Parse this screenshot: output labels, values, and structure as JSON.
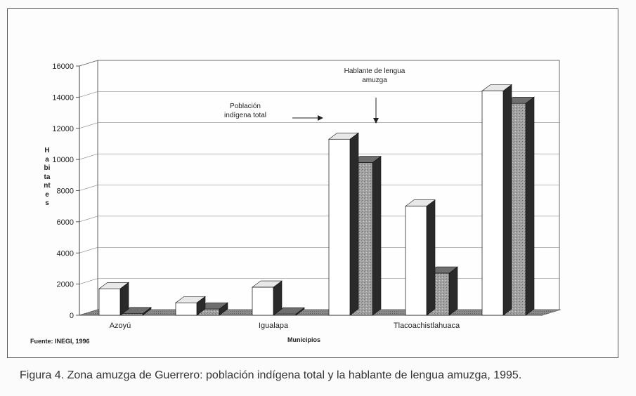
{
  "chart_data": {
    "type": "bar",
    "title": "",
    "xlabel": "Municipios",
    "ylabel": "Habitantes",
    "ylim": [
      0,
      16000
    ],
    "yticks": [
      "0",
      "2000",
      "4000",
      "6000",
      "8000",
      "10000",
      "12000",
      "14000",
      "16000"
    ],
    "categories": [
      "Azoyú",
      "",
      "Igualapa",
      "",
      "Tlacoachistlahuaca",
      ""
    ],
    "series": [
      {
        "name": "Población indígena total",
        "values": [
          1700,
          800,
          1800,
          11300,
          7000,
          14400
        ]
      },
      {
        "name": "Hablante de lengua amuzga",
        "values": [
          100,
          400,
          80,
          9800,
          2700,
          13600
        ]
      }
    ],
    "grid": true,
    "legend": "annotations with arrows, top-center"
  },
  "annotations": {
    "total_line1": "Población",
    "total_line2": "indígena total",
    "amuzga_line1": "Hablante de lengua",
    "amuzga_line2": "amuzga"
  },
  "source": "Fuente: INEGI, 1996",
  "caption": "Figura 4. Zona amuzga de Guerrero: población indígena total y la hablante de lengua amuzga, 1995.",
  "colors": {
    "series1": "#ffffff",
    "series2": "#9a9a9a",
    "dark_side": "#2a2a2a",
    "floor": "#8c8c8c"
  }
}
